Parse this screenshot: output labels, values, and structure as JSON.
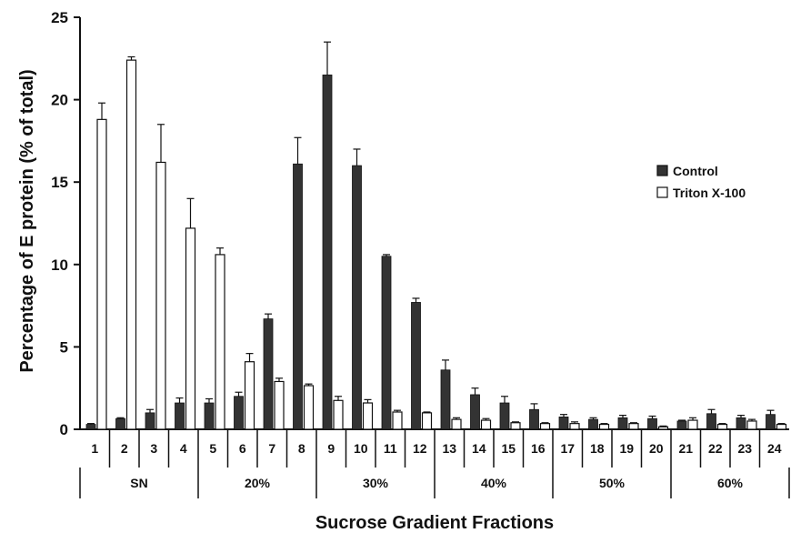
{
  "chart_data": {
    "type": "bar",
    "title": "",
    "ylabel": "Percentage of E protein (% of total)",
    "xlabel": "Sucrose Gradient Fractions",
    "ylim": [
      0,
      25
    ],
    "yticks": [
      0,
      5,
      10,
      15,
      20,
      25
    ],
    "categories": [
      "1",
      "2",
      "3",
      "4",
      "5",
      "6",
      "7",
      "8",
      "9",
      "10",
      "11",
      "12",
      "13",
      "14",
      "15",
      "16",
      "17",
      "18",
      "19",
      "20",
      "21",
      "22",
      "23",
      "24"
    ],
    "groups": [
      {
        "label": "SN",
        "categories": [
          "1",
          "2",
          "3",
          "4"
        ]
      },
      {
        "label": "20%",
        "categories": [
          "5",
          "6",
          "7",
          "8"
        ]
      },
      {
        "label": "30%",
        "categories": [
          "9",
          "10",
          "11",
          "12"
        ]
      },
      {
        "label": "40%",
        "categories": [
          "13",
          "14",
          "15",
          "16"
        ]
      },
      {
        "label": "50%",
        "categories": [
          "17",
          "18",
          "19",
          "20"
        ]
      },
      {
        "label": "60%",
        "categories": [
          "21",
          "22",
          "23",
          "24"
        ]
      }
    ],
    "series": [
      {
        "name": "Control",
        "color": "#333333",
        "values": [
          0.3,
          0.65,
          1.0,
          1.6,
          1.6,
          2.0,
          6.7,
          16.1,
          21.5,
          16.0,
          10.5,
          7.7,
          3.6,
          2.1,
          1.6,
          1.2,
          0.75,
          0.6,
          0.7,
          0.65,
          0.5,
          0.95,
          0.7,
          0.9
        ],
        "errors": [
          0.05,
          0.05,
          0.2,
          0.3,
          0.25,
          0.25,
          0.3,
          1.6,
          2.0,
          1.0,
          0.1,
          0.25,
          0.6,
          0.4,
          0.4,
          0.35,
          0.15,
          0.1,
          0.15,
          0.15,
          0.05,
          0.25,
          0.15,
          0.25
        ]
      },
      {
        "name": "Triton X-100",
        "color": "#ffffff",
        "values": [
          18.8,
          22.4,
          16.2,
          12.2,
          10.6,
          4.1,
          2.9,
          2.65,
          1.75,
          1.6,
          1.05,
          1.0,
          0.6,
          0.55,
          0.4,
          0.35,
          0.35,
          0.3,
          0.35,
          0.15,
          0.55,
          0.3,
          0.5,
          0.3
        ],
        "errors": [
          1.0,
          0.2,
          2.3,
          1.8,
          0.4,
          0.5,
          0.2,
          0.1,
          0.25,
          0.2,
          0.1,
          0.05,
          0.1,
          0.1,
          0.05,
          0.05,
          0.1,
          0.05,
          0.05,
          0.05,
          0.15,
          0.05,
          0.1,
          0.05
        ]
      }
    ],
    "legend": {
      "position": "right",
      "entries": [
        "Control",
        "Triton X-100"
      ]
    },
    "grid": false
  }
}
